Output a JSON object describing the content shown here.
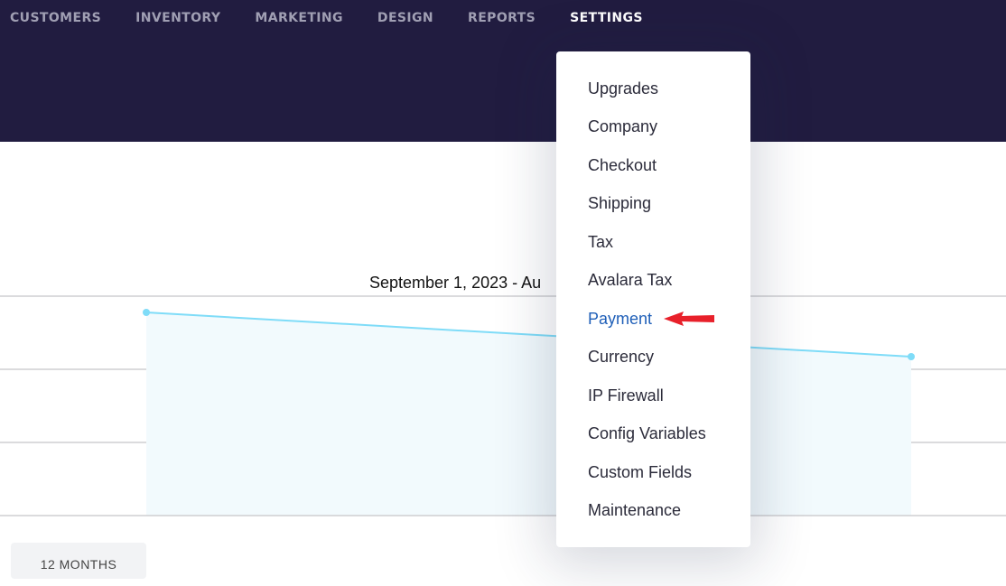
{
  "nav": {
    "items": [
      {
        "label": "CUSTOMERS",
        "active": false
      },
      {
        "label": "INVENTORY",
        "active": false
      },
      {
        "label": "MARKETING",
        "active": false
      },
      {
        "label": "DESIGN",
        "active": false
      },
      {
        "label": "REPORTS",
        "active": false
      },
      {
        "label": "SETTINGS",
        "active": true
      }
    ]
  },
  "chart": {
    "date_range": "September 1, 2023 - Au",
    "line_color": "#7fdcf8"
  },
  "range_button": {
    "label": "12 MONTHS"
  },
  "settings_menu": {
    "items": [
      {
        "label": "Upgrades"
      },
      {
        "label": "Company"
      },
      {
        "label": "Checkout"
      },
      {
        "label": "Shipping"
      },
      {
        "label": "Tax"
      },
      {
        "label": "Avalara Tax"
      },
      {
        "label": "Payment",
        "highlighted": true
      },
      {
        "label": "Currency"
      },
      {
        "label": "IP Firewall"
      },
      {
        "label": "Config Variables"
      },
      {
        "label": "Custom Fields"
      },
      {
        "label": "Maintenance"
      }
    ],
    "highlight_color": "#1f5fb8"
  },
  "annotation": {
    "icon": "red-arrow-left-icon",
    "color": "#e8202a"
  }
}
